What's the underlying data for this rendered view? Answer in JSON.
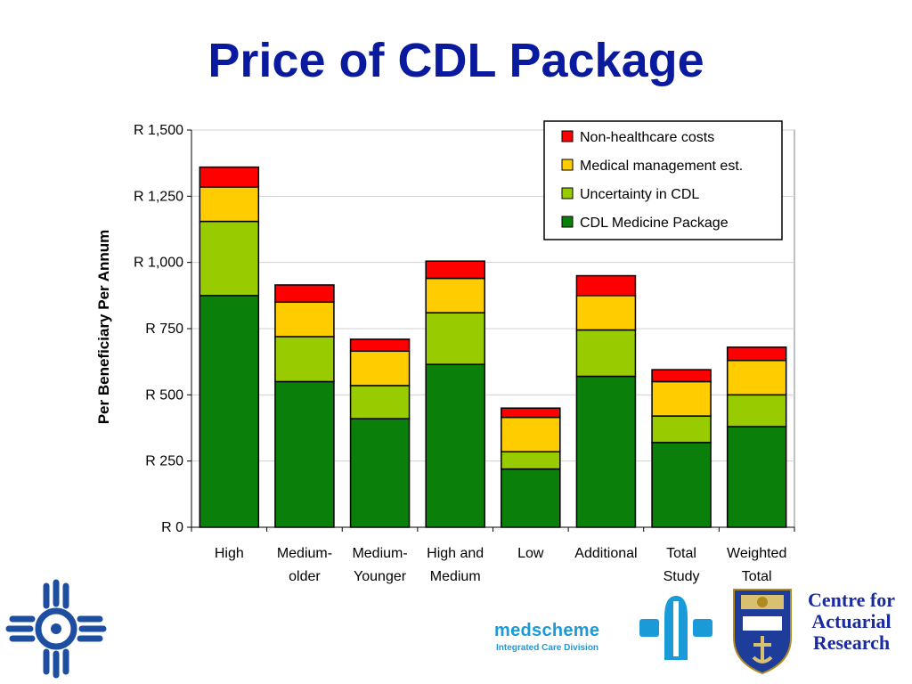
{
  "slide": {
    "title": "Price of CDL Package"
  },
  "chart_data": {
    "type": "bar",
    "stacked": true,
    "title": "",
    "xlabel": "",
    "ylabel": "Per Beneficiary Per Annum",
    "ylim": [
      0,
      1500
    ],
    "yticks": [
      0,
      250,
      500,
      750,
      1000,
      1250,
      1500
    ],
    "ytick_labels": [
      "R 0",
      "R 250",
      "R 500",
      "R 750",
      "R 1,000",
      "R 1,250",
      "R 1,500"
    ],
    "grid": true,
    "legend_position": "top-right",
    "categories": [
      [
        "High"
      ],
      [
        "Medium-",
        "older"
      ],
      [
        "Medium-",
        "Younger"
      ],
      [
        "High and",
        "Medium"
      ],
      [
        "Low"
      ],
      [
        "Additional"
      ],
      [
        "Total",
        "Study"
      ],
      [
        "Weighted",
        "Total"
      ]
    ],
    "series": [
      {
        "name": "CDL Medicine Package",
        "color": "#0a7f0a",
        "values": [
          875,
          550,
          410,
          615,
          220,
          570,
          320,
          380
        ]
      },
      {
        "name": "Uncertainty in CDL",
        "color": "#99cc00",
        "values": [
          280,
          170,
          125,
          195,
          65,
          175,
          100,
          120
        ]
      },
      {
        "name": "Medical management est.",
        "color": "#ffcc00",
        "values": [
          130,
          130,
          130,
          130,
          130,
          130,
          130,
          130
        ]
      },
      {
        "name": "Non-healthcare costs",
        "color": "#ff0000",
        "values": [
          75,
          65,
          45,
          65,
          35,
          75,
          45,
          50
        ]
      }
    ],
    "legend_order": [
      "Non-healthcare costs",
      "Medical management est.",
      "Uncertainty in CDL",
      "CDL Medicine Package"
    ]
  },
  "logos": {
    "left": "cross-emblem",
    "medscheme_name": "medscheme",
    "medscheme_division": "Integrated Care Division",
    "centre_lines": [
      "Centre for",
      "Actuarial",
      "Research"
    ],
    "uct_crest": "uct-crest",
    "medscheme_mark": "medscheme-logo-mark"
  },
  "colors": {
    "title": "#0a1a9e",
    "logo_blue": "#1a9bd8",
    "cross_blue": "#1e4ea0",
    "centre_text": "#1a2aa0"
  }
}
